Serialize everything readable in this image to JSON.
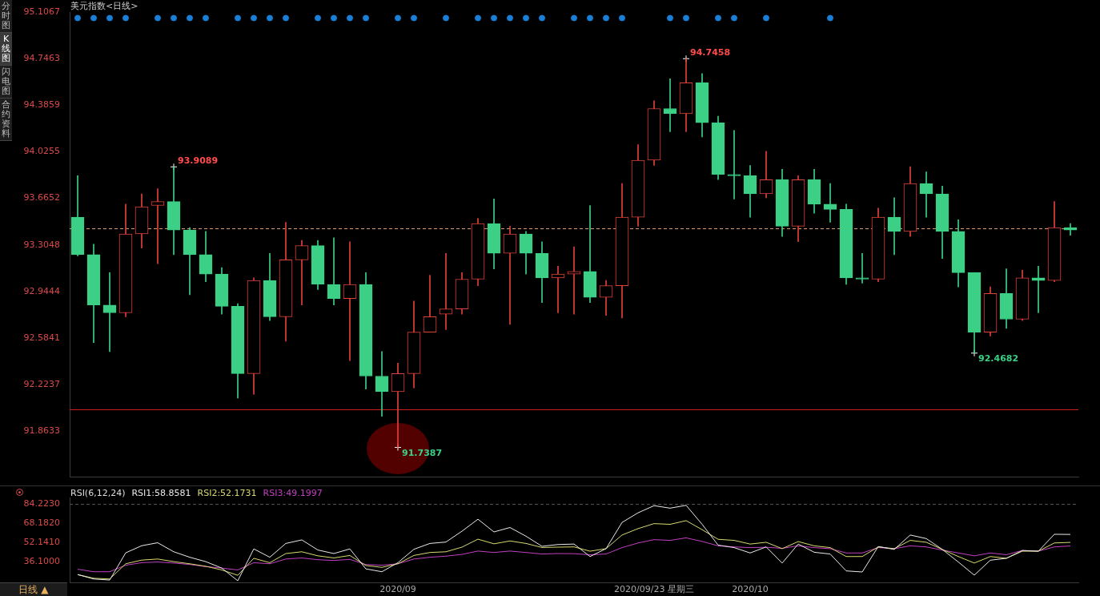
{
  "chart_data": [
    {
      "type": "candlestick",
      "title": "美元指数<日线>",
      "categories": [
        null,
        null,
        null,
        null,
        null,
        null,
        null,
        null,
        null,
        null,
        null,
        null,
        null,
        null,
        null,
        null,
        null,
        null,
        null,
        null,
        null,
        null,
        null,
        null,
        null,
        null,
        null,
        null,
        null,
        null,
        null,
        null,
        null,
        null,
        null,
        null,
        null,
        null,
        null,
        null,
        null,
        null,
        null,
        null,
        null,
        null,
        null,
        null,
        null,
        null,
        null,
        null,
        null,
        null,
        null,
        null,
        null,
        null,
        null,
        null,
        null,
        null,
        null
      ],
      "ohlc": [
        [
          93.52,
          93.84,
          93.22,
          93.23
        ],
        [
          93.23,
          93.31,
          92.55,
          92.84
        ],
        [
          92.84,
          93.09,
          92.48,
          92.78
        ],
        [
          92.78,
          93.62,
          92.75,
          93.39
        ],
        [
          93.39,
          93.7,
          93.28,
          93.6
        ],
        [
          93.61,
          93.74,
          93.16,
          93.64
        ],
        [
          93.64,
          93.9089,
          93.23,
          93.42
        ],
        [
          93.42,
          93.44,
          92.92,
          93.23
        ],
        [
          93.23,
          93.41,
          93.02,
          93.08
        ],
        [
          93.08,
          93.13,
          92.77,
          92.83
        ],
        [
          92.83,
          92.85,
          92.12,
          92.31
        ],
        [
          92.31,
          93.05,
          92.15,
          93.03
        ],
        [
          93.03,
          93.24,
          92.72,
          92.75
        ],
        [
          92.75,
          93.48,
          92.56,
          93.19
        ],
        [
          93.19,
          93.34,
          92.84,
          93.3
        ],
        [
          93.3,
          93.34,
          92.96,
          93.0
        ],
        [
          93.0,
          93.36,
          92.84,
          92.89
        ],
        [
          92.89,
          93.33,
          92.41,
          93.0
        ],
        [
          93.0,
          93.09,
          92.19,
          92.29
        ],
        [
          92.29,
          92.48,
          91.98,
          92.17
        ],
        [
          92.17,
          92.39,
          91.7387,
          92.31
        ],
        [
          92.31,
          92.87,
          92.2,
          92.63
        ],
        [
          92.63,
          93.07,
          92.63,
          92.75
        ],
        [
          92.77,
          93.24,
          92.65,
          92.81
        ],
        [
          92.81,
          93.09,
          92.77,
          93.04
        ],
        [
          93.04,
          93.51,
          92.99,
          93.47
        ],
        [
          93.47,
          93.66,
          93.12,
          93.24
        ],
        [
          93.24,
          93.45,
          92.69,
          93.39
        ],
        [
          93.39,
          93.41,
          93.08,
          93.24
        ],
        [
          93.24,
          93.33,
          92.86,
          93.05
        ],
        [
          93.05,
          93.14,
          92.78,
          93.08
        ],
        [
          93.08,
          93.29,
          92.77,
          93.1
        ],
        [
          93.1,
          93.61,
          92.86,
          92.9
        ],
        [
          92.9,
          93.03,
          92.76,
          92.99
        ],
        [
          92.99,
          93.78,
          92.74,
          93.52
        ],
        [
          93.52,
          94.08,
          93.45,
          93.96
        ],
        [
          93.96,
          94.42,
          93.92,
          94.36
        ],
        [
          94.36,
          94.59,
          94.18,
          94.32
        ],
        [
          94.32,
          94.7458,
          94.18,
          94.56
        ],
        [
          94.56,
          94.63,
          94.14,
          94.25
        ],
        [
          94.25,
          94.3,
          93.81,
          93.85
        ],
        [
          93.85,
          94.19,
          93.66,
          93.84
        ],
        [
          93.84,
          93.92,
          93.52,
          93.7
        ],
        [
          93.7,
          94.03,
          93.67,
          93.81
        ],
        [
          93.81,
          93.89,
          93.37,
          93.45
        ],
        [
          93.45,
          93.84,
          93.33,
          93.81
        ],
        [
          93.81,
          93.89,
          93.55,
          93.62
        ],
        [
          93.62,
          93.78,
          93.48,
          93.58
        ],
        [
          93.58,
          93.62,
          93.0,
          93.05
        ],
        [
          93.05,
          93.24,
          93.01,
          93.04
        ],
        [
          93.04,
          93.59,
          93.02,
          93.52
        ],
        [
          93.52,
          93.67,
          93.23,
          93.41
        ],
        [
          93.41,
          93.91,
          93.37,
          93.78
        ],
        [
          93.78,
          93.87,
          93.52,
          93.7
        ],
        [
          93.7,
          93.76,
          93.2,
          93.41
        ],
        [
          93.41,
          93.5,
          92.98,
          93.09
        ],
        [
          93.09,
          93.09,
          92.4682,
          92.63
        ],
        [
          92.63,
          92.98,
          92.6,
          92.93
        ],
        [
          92.93,
          93.12,
          92.66,
          92.73
        ],
        [
          92.73,
          93.11,
          92.72,
          93.05
        ],
        [
          93.05,
          93.14,
          92.78,
          93.03
        ],
        [
          93.03,
          93.64,
          93.02,
          93.44
        ],
        [
          93.44,
          93.47,
          93.38,
          93.42
        ]
      ],
      "colors": [
        "#3ccf86",
        "#3ccf86",
        "#3ccf86",
        "#e0403a",
        "#e0403a",
        "#e0403a",
        "#3ccf86",
        "#3ccf86",
        "#3ccf86",
        "#3ccf86",
        "#3ccf86",
        "#e0403a",
        "#3ccf86",
        "#e0403a",
        "#e0403a",
        "#3ccf86",
        "#3ccf86",
        "#e0403a",
        "#3ccf86",
        "#3ccf86",
        "#e0403a",
        "#e0403a",
        "#e0403a",
        "#e0403a",
        "#e0403a",
        "#e0403a",
        "#3ccf86",
        "#e0403a",
        "#3ccf86",
        "#3ccf86",
        "#e0403a",
        "#e0403a",
        "#3ccf86",
        "#e0403a",
        "#e0403a",
        "#e0403a",
        "#e0403a",
        "#3ccf86",
        "#e0403a",
        "#3ccf86",
        "#3ccf86",
        "#3ccf86",
        "#3ccf86",
        "#e0403a",
        "#3ccf86",
        "#e0403a",
        "#3ccf86",
        "#3ccf86",
        "#3ccf86",
        "#3ccf86",
        "#e0403a",
        "#3ccf86",
        "#e0403a",
        "#3ccf86",
        "#3ccf86",
        "#3ccf86",
        "#3ccf86",
        "#e0403a",
        "#3ccf86",
        "#e0403a",
        "#3ccf86",
        "#e0403a",
        "#3ccf86"
      ],
      "series": [
        {
          "type": "scatter",
          "color": "#1a7fd6",
          "values": [
            95.06,
            95.06,
            95.06,
            95.06,
            null,
            95.06,
            95.06,
            95.06,
            95.06,
            null,
            95.06,
            95.06,
            95.06,
            95.06,
            null,
            95.06,
            95.06,
            95.06,
            95.06,
            null,
            95.06,
            95.06,
            null,
            95.06,
            null,
            95.06,
            95.06,
            95.06,
            95.06,
            95.06,
            null,
            95.06,
            95.06,
            95.06,
            95.06,
            null,
            null,
            95.06,
            95.06,
            null,
            95.06,
            95.06,
            null,
            95.06,
            null,
            null,
            null,
            95.06,
            null,
            null,
            null,
            null,
            null,
            null,
            null,
            null,
            null,
            null,
            null,
            null,
            null,
            null,
            null
          ]
        }
      ],
      "ylim": [
        91.51,
        95.1067
      ],
      "yticks": [
        91.8633,
        92.2237,
        92.5841,
        92.9444,
        93.3048,
        93.6652,
        94.0255,
        94.3859,
        94.7463,
        95.1067
      ],
      "tick_labels": "y",
      "ref_lines": [
        {
          "axis": "y",
          "value": 93.43,
          "color": "#e0a070",
          "line_style": "dashed"
        },
        {
          "axis": "y",
          "value": 92.03,
          "color": "#d02020",
          "line_style": "solid"
        }
      ],
      "value_labels": [
        null,
        null,
        null,
        null,
        null,
        null,
        "93.9089",
        null,
        null,
        null,
        null,
        null,
        null,
        null,
        null,
        null,
        null,
        null,
        null,
        null,
        "91.7387",
        null,
        null,
        null,
        null,
        null,
        null,
        null,
        null,
        null,
        null,
        null,
        null,
        null,
        null,
        null,
        null,
        null,
        "94.7458",
        null,
        null,
        null,
        null,
        null,
        null,
        null,
        null,
        null,
        null,
        null,
        null,
        null,
        null,
        null,
        null,
        null,
        "92.4682",
        null,
        null,
        null,
        null,
        null,
        null
      ],
      "annotations": [
        "分时图",
        "K线图",
        "闪电图",
        "合约资料"
      ]
    },
    {
      "type": "line",
      "title": "RSI(6,12,24)",
      "categories": [
        null,
        null,
        null,
        null,
        null,
        null,
        null,
        null,
        null,
        null,
        null,
        null,
        null,
        null,
        null,
        null,
        null,
        null,
        null,
        null,
        "2020/09",
        null,
        null,
        null,
        null,
        null,
        null,
        null,
        null,
        null,
        null,
        null,
        null,
        null,
        null,
        null,
        "2020/09/23 星期三",
        null,
        null,
        null,
        null,
        null,
        "2020/10",
        null,
        null,
        null,
        null,
        null,
        null,
        null,
        null,
        null,
        null,
        null,
        null,
        null,
        null,
        null,
        null,
        null,
        null,
        null,
        null
      ],
      "series": [
        {
          "name": "RSI1:58.8581",
          "color": "#e8e8e8",
          "values": [
            25.1,
            21.4,
            20.5,
            43.4,
            49.4,
            51.9,
            44.3,
            39.7,
            36.0,
            30.6,
            19.9,
            46.7,
            39.7,
            51.3,
            54.3,
            45.8,
            42.8,
            46.7,
            29.9,
            27.5,
            35.1,
            46.4,
            51.3,
            52.5,
            61.6,
            71.7,
            61.0,
            64.7,
            57.4,
            48.9,
            50.4,
            50.8,
            40.3,
            46.9,
            69.0,
            77.1,
            83.1,
            81.0,
            83.4,
            67.4,
            49.9,
            47.8,
            43.3,
            48.4,
            34.8,
            50.8,
            43.9,
            42.4,
            28.2,
            27.3,
            48.7,
            46.3,
            58.4,
            55.4,
            46.3,
            35.7,
            24.6,
            37.2,
            38.8,
            45.4,
            44.8,
            59.0,
            58.9
          ]
        },
        {
          "name": "RSI2:52.1731",
          "color": "#d8d870",
          "values": [
            25.1,
            22.0,
            21.4,
            34.2,
            37.3,
            38.2,
            36.0,
            34.2,
            32.1,
            29.0,
            24.5,
            38.8,
            35.1,
            42.8,
            44.3,
            40.9,
            39.1,
            41.2,
            32.7,
            31.2,
            34.2,
            41.2,
            43.7,
            44.3,
            48.2,
            54.9,
            51.0,
            53.4,
            51.3,
            47.9,
            48.2,
            48.4,
            44.8,
            46.9,
            58.4,
            63.8,
            68.0,
            67.4,
            70.5,
            62.9,
            54.8,
            53.9,
            50.8,
            52.3,
            46.9,
            52.9,
            49.3,
            47.8,
            40.3,
            40.3,
            48.4,
            46.9,
            53.9,
            52.3,
            46.3,
            40.3,
            34.8,
            40.3,
            38.8,
            44.8,
            44.8,
            51.7,
            52.2
          ]
        },
        {
          "name": "RSI3:49.1997",
          "color": "#c040c0",
          "values": [
            29.6,
            27.5,
            27.5,
            33.0,
            35.1,
            35.7,
            34.8,
            33.6,
            31.8,
            30.6,
            29.0,
            35.1,
            34.2,
            38.2,
            39.1,
            37.6,
            37.0,
            37.9,
            33.6,
            33.0,
            34.2,
            38.2,
            39.7,
            40.6,
            42.1,
            44.9,
            43.7,
            44.9,
            43.7,
            42.4,
            42.8,
            42.7,
            41.8,
            42.4,
            47.8,
            51.7,
            54.5,
            53.9,
            56.0,
            53.0,
            49.3,
            48.4,
            47.8,
            48.1,
            47.2,
            49.3,
            47.8,
            46.9,
            43.3,
            43.3,
            47.8,
            46.9,
            49.3,
            48.4,
            45.7,
            43.3,
            40.9,
            43.3,
            41.8,
            45.4,
            44.8,
            48.4,
            49.2
          ]
        }
      ],
      "ylim": [
        18,
        90
      ],
      "yticks": [
        {
          "value": 36.1,
          "label": "36.1000"
        },
        {
          "value": 52.141,
          "label": "52.1410"
        },
        {
          "value": 68.182,
          "label": "68.1820"
        },
        {
          "value": 84.223,
          "label": "84.2230"
        }
      ],
      "ref_lines": [
        {
          "axis": "y",
          "value": 84.223,
          "color": "#555555",
          "line_style": "dashed"
        }
      ],
      "marker": "none",
      "annotations": [
        "日线 ▲"
      ]
    }
  ]
}
